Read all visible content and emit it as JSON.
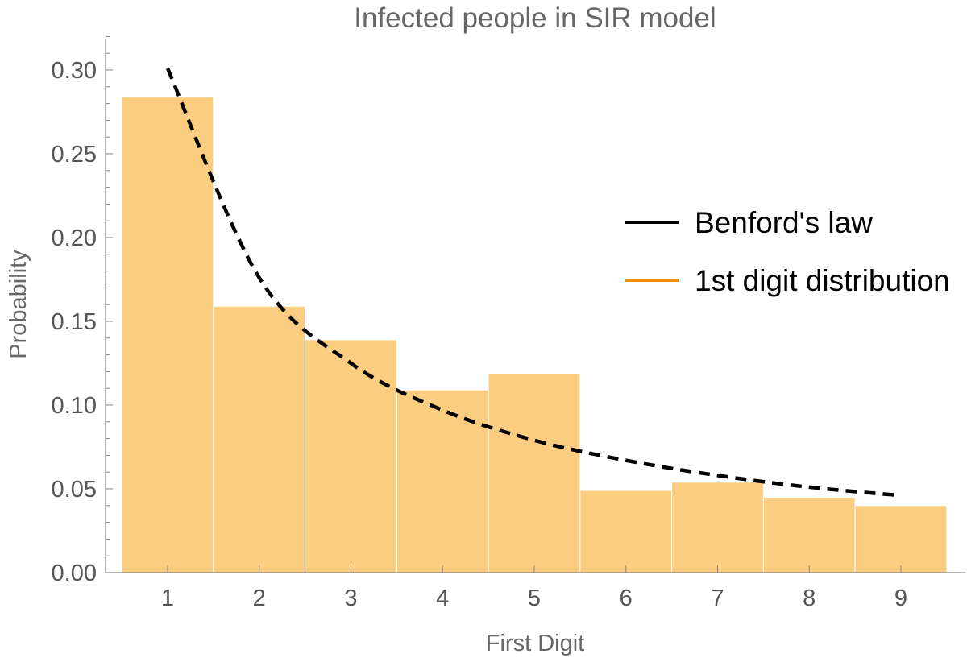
{
  "chart_data": {
    "type": "bar",
    "title": "Infected people in SIR model",
    "xlabel": "First Digit",
    "ylabel": "Probability",
    "categories": [
      "1",
      "2",
      "3",
      "4",
      "5",
      "6",
      "7",
      "8",
      "9"
    ],
    "ylim": [
      0,
      0.32
    ],
    "yticks": [
      "0.00",
      "0.05",
      "0.10",
      "0.15",
      "0.20",
      "0.25",
      "0.30"
    ],
    "series": [
      {
        "name": "1st digit distribution",
        "kind": "bar",
        "color": "#fbcd80",
        "values": [
          0.284,
          0.159,
          0.139,
          0.109,
          0.119,
          0.049,
          0.054,
          0.045,
          0.04
        ]
      },
      {
        "name": "Benford's law",
        "kind": "line",
        "style": "dashed",
        "color": "#000000",
        "values": [
          0.301,
          0.176,
          0.125,
          0.097,
          0.079,
          0.067,
          0.058,
          0.051,
          0.046
        ]
      }
    ],
    "legend": {
      "placement": "right",
      "entries": [
        {
          "label": "Benford's law",
          "color": "#000000"
        },
        {
          "label": "1st digit distribution",
          "color": "#f08c00"
        }
      ]
    },
    "grid": false
  }
}
